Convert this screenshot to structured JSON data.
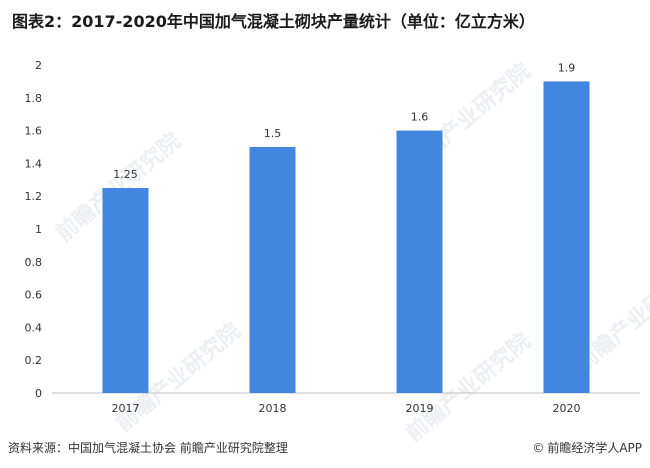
{
  "title": "图表2：2017-2020年中国加气混凝土砌块产量统计（单位：亿立方米）",
  "footer": {
    "source": "资料来源：中国加气混凝土协会 前瞻产业研究院整理",
    "copyright_icon": "©",
    "brand": "前瞻经济学人APP"
  },
  "watermark": "前瞻产业研究院",
  "colors": {
    "bar": "#4286e0",
    "axis": "#bfbfbf",
    "text": "#333333"
  },
  "chart_data": {
    "type": "bar",
    "categories": [
      "2017",
      "2018",
      "2019",
      "2020"
    ],
    "values": [
      1.25,
      1.5,
      1.6,
      1.9
    ],
    "value_labels": [
      "1.25",
      "1.5",
      "1.6",
      "1.9"
    ],
    "yticks": [
      "0",
      "0.2",
      "0.4",
      "0.6",
      "0.8",
      "1",
      "1.2",
      "1.4",
      "1.6",
      "1.8",
      "2"
    ],
    "ylim": [
      0,
      2
    ],
    "grid": false,
    "title": "",
    "xlabel": "",
    "ylabel": ""
  }
}
